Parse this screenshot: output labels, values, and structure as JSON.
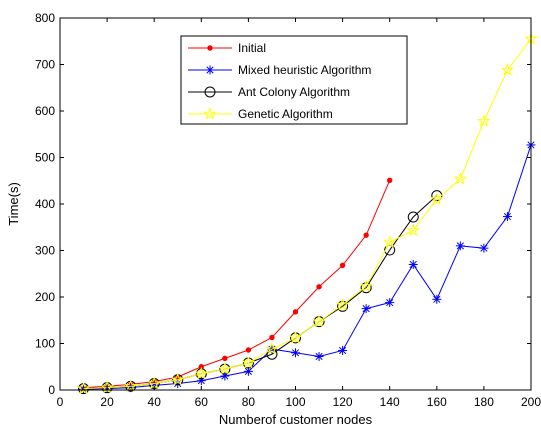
{
  "chart_data": {
    "type": "line",
    "title": "",
    "xlabel": "Numberof customer nodes",
    "ylabel": "Time(s)",
    "xlim": [
      0,
      200
    ],
    "ylim": [
      0,
      800
    ],
    "xticks": [
      "0",
      "20",
      "40",
      "60",
      "80",
      "100",
      "120",
      "140",
      "160",
      "180",
      "200"
    ],
    "yticks": [
      "0",
      "100",
      "200",
      "300",
      "400",
      "500",
      "600",
      "700",
      "800"
    ],
    "grid": false,
    "legend_position": "top-center",
    "series": [
      {
        "name": "Initial",
        "color": "#ff0000",
        "marker": "dot",
        "x": [
          10,
          20,
          30,
          40,
          50,
          60,
          70,
          80,
          90,
          100,
          110,
          120,
          130,
          140
        ],
        "y": [
          5,
          8,
          12,
          18,
          28,
          50,
          68,
          86,
          113,
          168,
          222,
          268,
          333,
          451
        ]
      },
      {
        "name": "Mixed heuristic Algorithm",
        "color": "#0000ff",
        "marker": "star",
        "x": [
          10,
          20,
          30,
          40,
          50,
          60,
          70,
          80,
          90,
          100,
          110,
          120,
          130,
          140,
          150,
          160,
          170,
          180,
          190,
          200
        ],
        "y": [
          2,
          3,
          5,
          10,
          14,
          20,
          30,
          40,
          88,
          80,
          72,
          85,
          175,
          188,
          270,
          195,
          310,
          305,
          373,
          527
        ]
      },
      {
        "name": "Ant Colony Algorithm",
        "color": "#000000",
        "marker": "circle",
        "x": [
          10,
          20,
          30,
          40,
          50,
          60,
          70,
          80,
          90,
          100,
          110,
          120,
          130,
          140,
          150,
          160
        ],
        "y": [
          3,
          5,
          8,
          14,
          22,
          35,
          45,
          58,
          77,
          112,
          147,
          180,
          220,
          301,
          372,
          418
        ]
      },
      {
        "name": "Genetic Algorithm",
        "color": "#ffff00",
        "marker": "pentagram",
        "x": [
          10,
          20,
          30,
          40,
          50,
          60,
          70,
          80,
          90,
          100,
          110,
          120,
          130,
          140,
          150,
          160,
          170,
          180,
          190,
          200
        ],
        "y": [
          3,
          5,
          8,
          14,
          22,
          35,
          45,
          58,
          88,
          112,
          147,
          183,
          223,
          318,
          343,
          410,
          454,
          578,
          688,
          755
        ]
      }
    ]
  }
}
